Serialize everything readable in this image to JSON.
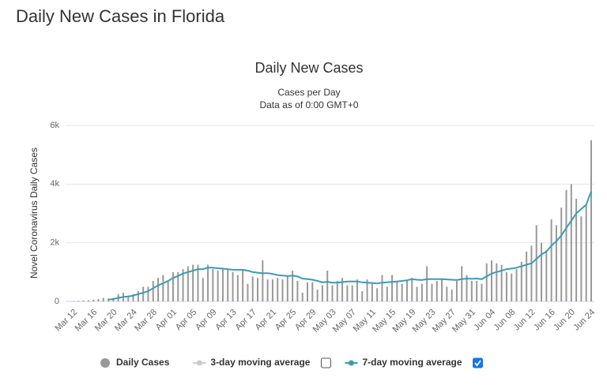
{
  "header": {
    "title": "Daily New Cases in Florida"
  },
  "chart_data": {
    "type": "bar",
    "title": "Daily New Cases",
    "subtitle": "Cases per Day",
    "note": "Data as of 0:00 GMT+0",
    "y_label": "Novel Coronavirus Daily Cases",
    "categories": [
      "Mar 12",
      null,
      null,
      null,
      "Mar 16",
      null,
      null,
      null,
      "Mar 20",
      null,
      null,
      null,
      "Mar 24",
      null,
      null,
      null,
      "Mar 28",
      null,
      null,
      null,
      "Apr 01",
      null,
      null,
      null,
      "Apr 05",
      null,
      null,
      null,
      "Apr 09",
      null,
      null,
      null,
      "Apr 13",
      null,
      null,
      null,
      "Apr 17",
      null,
      null,
      null,
      "Apr 21",
      null,
      null,
      null,
      "Apr 25",
      null,
      null,
      null,
      "Apr 29",
      null,
      null,
      null,
      "May 03",
      null,
      null,
      null,
      "May 07",
      null,
      null,
      null,
      "May 11",
      null,
      null,
      null,
      "May 15",
      null,
      null,
      null,
      "May 19",
      null,
      null,
      null,
      "May 23",
      null,
      null,
      null,
      "May 27",
      null,
      null,
      null,
      "May 31",
      null,
      null,
      null,
      "Jun 04",
      null,
      null,
      null,
      "Jun 08",
      null,
      null,
      null,
      "Jun 12",
      null,
      null,
      null,
      "Jun 16",
      null,
      null,
      null,
      "Jun 20",
      null,
      null,
      null,
      "Jun 24"
    ],
    "series": [
      {
        "name": "Daily Cases",
        "type": "bar",
        "color": "#999999",
        "values": [
          10,
          20,
          30,
          40,
          60,
          80,
          120,
          100,
          120,
          250,
          300,
          200,
          250,
          350,
          500,
          500,
          700,
          800,
          900,
          700,
          1000,
          1000,
          1100,
          1200,
          1250,
          1250,
          800,
          1250,
          1100,
          1050,
          1100,
          1100,
          1000,
          900,
          1100,
          600,
          850,
          800,
          1400,
          750,
          750,
          800,
          750,
          850,
          1050,
          700,
          300,
          650,
          650,
          400,
          550,
          1050,
          550,
          700,
          800,
          550,
          550,
          750,
          350,
          750,
          600,
          450,
          900,
          500,
          900,
          700,
          600,
          700,
          800,
          500,
          600,
          1200,
          600,
          700,
          750,
          500,
          400,
          700,
          1200,
          900,
          700,
          700,
          600,
          1300,
          1400,
          1300,
          1250,
          1000,
          950,
          1100,
          1350,
          1700,
          1900,
          2600,
          2000,
          1750,
          2800,
          2600,
          3200,
          3800,
          4000,
          3500,
          2900,
          3300,
          5500
        ]
      },
      {
        "name": "3-day moving average",
        "type": "line",
        "color": "#cccccc",
        "visible": false
      },
      {
        "name": "7-day moving average",
        "type": "line",
        "color": "#3a9cb5",
        "visible": true,
        "values": [
          null,
          null,
          null,
          null,
          null,
          null,
          null,
          60,
          80,
          120,
          150,
          170,
          200,
          250,
          300,
          350,
          450,
          550,
          620,
          700,
          800,
          870,
          950,
          1000,
          1050,
          1100,
          1100,
          1150,
          1150,
          1130,
          1120,
          1100,
          1080,
          1080,
          1080,
          1050,
          1000,
          980,
          960,
          960,
          940,
          900,
          880,
          870,
          880,
          850,
          780,
          760,
          740,
          700,
          650,
          670,
          640,
          640,
          660,
          680,
          680,
          680,
          650,
          640,
          630,
          610,
          640,
          650,
          670,
          680,
          700,
          720,
          760,
          740,
          730,
          760,
          760,
          760,
          760,
          750,
          740,
          730,
          760,
          780,
          770,
          780,
          760,
          850,
          950,
          1000,
          1050,
          1100,
          1120,
          1150,
          1200,
          1250,
          1300,
          1450,
          1600,
          1700,
          1900,
          2050,
          2250,
          2500,
          2750,
          3000,
          3150,
          3300,
          3750
        ]
      }
    ],
    "ylim": [
      0,
      6000
    ],
    "yticks": [
      0,
      {
        "value": 2000,
        "label": "2k"
      },
      {
        "value": 4000,
        "label": "4k"
      },
      {
        "value": 6000,
        "label": "6k"
      }
    ],
    "grid": true
  }
}
